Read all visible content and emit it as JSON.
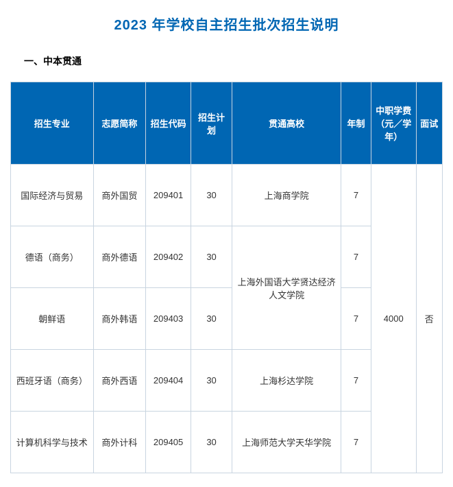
{
  "title": "2023 年学校自主招生批次招生说明",
  "section_heading": "一、中本贯通",
  "headers": {
    "major": "招生专业",
    "abbr": "志愿简称",
    "code": "招生代码",
    "plan": "招生计划",
    "univ": "贯通高校",
    "year": "年制",
    "fee": "中职学费（元／学年）",
    "interview": "面试"
  },
  "rows": [
    {
      "major": "国际经济与贸易",
      "abbr": "商外国贸",
      "code": "209401",
      "plan": "30",
      "univ": "上海商学院",
      "year": "7"
    },
    {
      "major": "德语（商务）",
      "abbr": "商外德语",
      "code": "209402",
      "plan": "30",
      "univ": "上海外国语大学贤达经济人文学院",
      "year": "7"
    },
    {
      "major": "朝鲜语",
      "abbr": "商外韩语",
      "code": "209403",
      "plan": "30",
      "year": "7"
    },
    {
      "major": "西班牙语（商务）",
      "abbr": "商外西语",
      "code": "209404",
      "plan": "30",
      "univ": "上海杉达学院",
      "year": "7"
    },
    {
      "major": "计算机科学与技术",
      "abbr": "商外计科",
      "code": "209405",
      "plan": "30",
      "univ": "上海师范大学天华学院",
      "year": "7"
    }
  ],
  "fee_value": "4000",
  "interview_value": "否"
}
